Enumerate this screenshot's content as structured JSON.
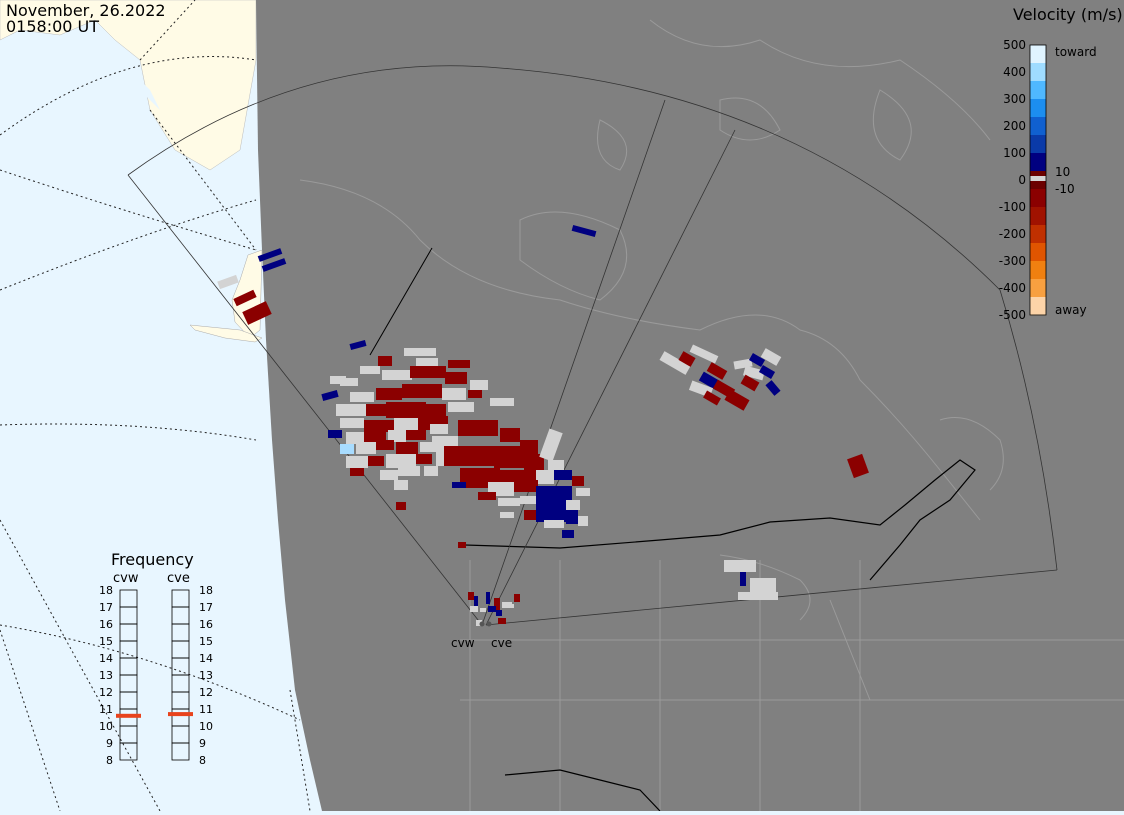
{
  "header": {
    "date": "November, 26.2022",
    "time": "0158:00 UT"
  },
  "colorbar": {
    "title": "Velocity (m/s)",
    "ticks": [
      "500",
      "400",
      "300",
      "200",
      "100",
      "0",
      "-100",
      "-200",
      "-300",
      "-400",
      "-500"
    ],
    "small_ticks": [
      "10",
      "-10"
    ],
    "end_labels": {
      "top": "toward",
      "bottom": "away"
    }
  },
  "frequency": {
    "title": "Frequency",
    "radars": [
      "cvw",
      "cve"
    ],
    "scale": [
      "18",
      "17",
      "16",
      "15",
      "14",
      "13",
      "12",
      "11",
      "10",
      "9",
      "8"
    ],
    "values_mhz": {
      "cvw": 10.6,
      "cve": 10.7
    },
    "indicator_color": "#e8431c"
  },
  "sites": [
    "cvw",
    "cve"
  ],
  "colors": {
    "land": "#808080",
    "ocean": "#e8f6ff",
    "daylight_land": "#fffbe6",
    "toward": "#000080",
    "away": "#8b0000",
    "ground_scatter": "#d3d3d3"
  }
}
